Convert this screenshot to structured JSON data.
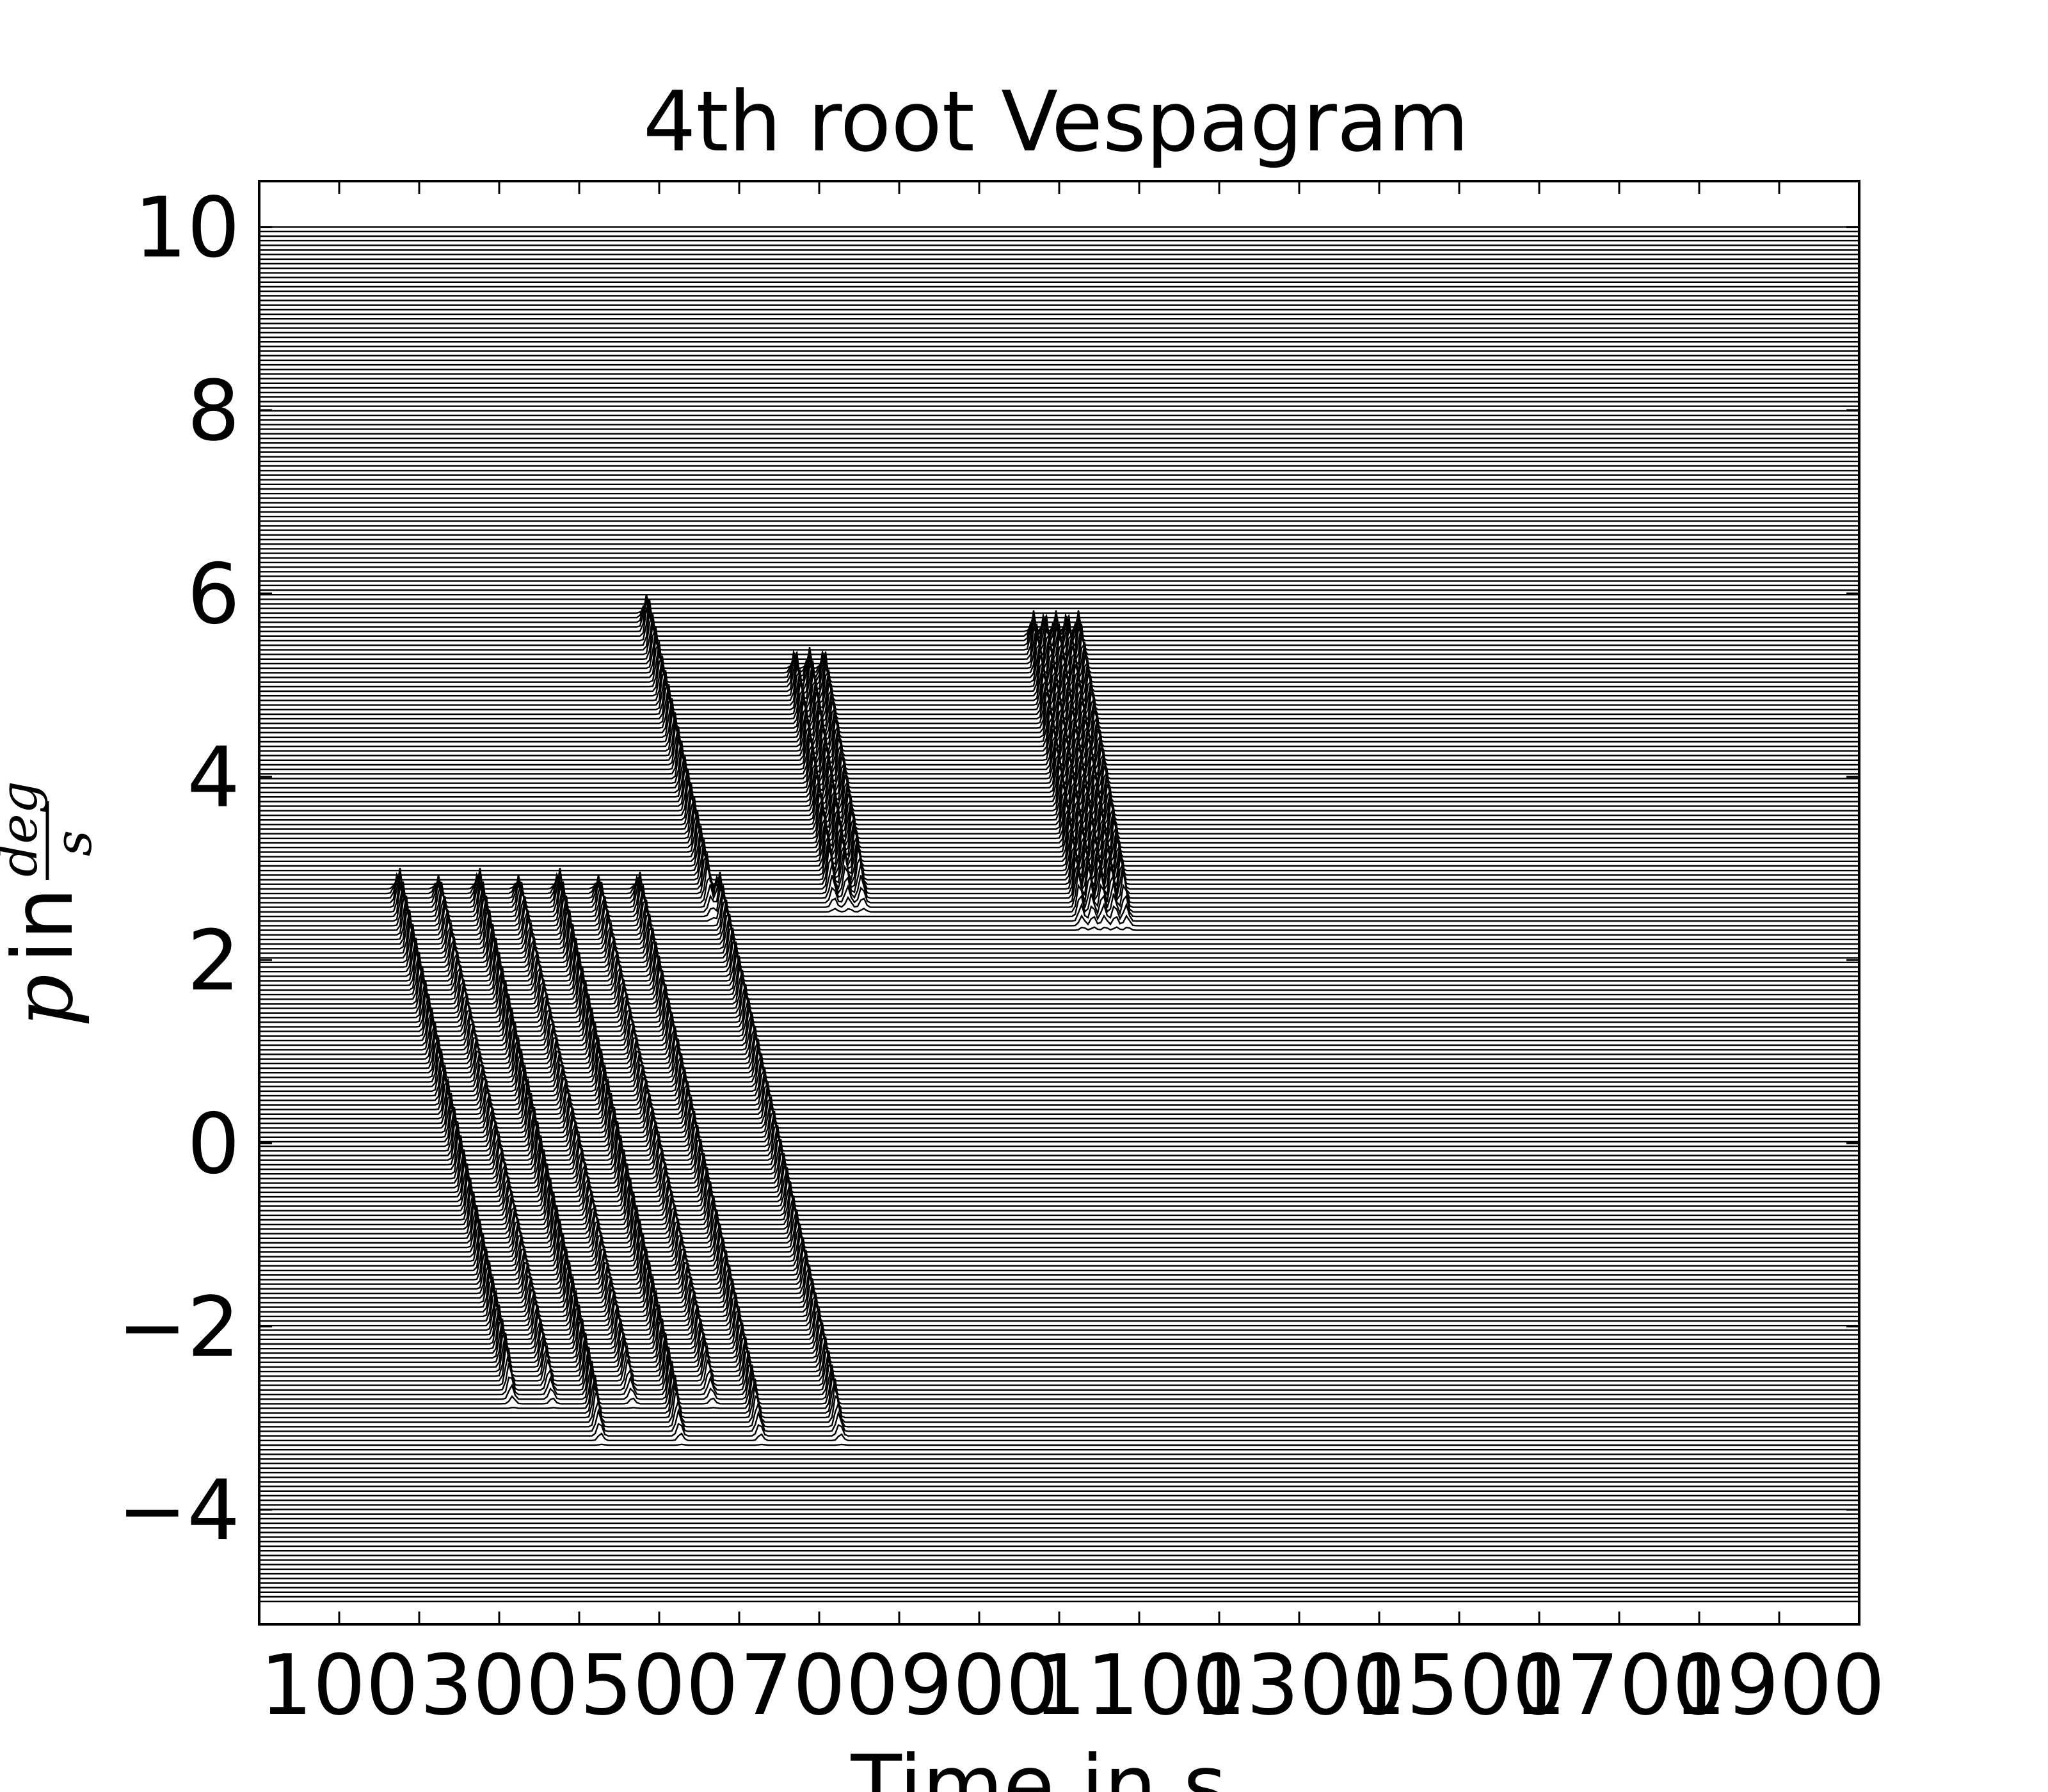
{
  "chart_data": {
    "type": "line",
    "title": "4th root Vespagram",
    "xlabel": "Time in s",
    "ylabel_parts": [
      "p",
      "in",
      "deg",
      "s"
    ],
    "xlim": [
      0,
      2000
    ],
    "ylim": [
      -5.25,
      10.5
    ],
    "trace_y_range": [
      -5,
      10
    ],
    "trace_count": 300,
    "x_ticks": [
      100,
      200,
      300,
      400,
      500,
      600,
      700,
      800,
      900,
      1000,
      1100,
      1200,
      1300,
      1400,
      1500,
      1600,
      1700,
      1800,
      1900
    ],
    "x_tick_labels": [
      "100",
      "",
      "300",
      "",
      "500",
      "",
      "700",
      "",
      "900",
      "",
      "1100",
      "",
      "1300",
      "",
      "1500",
      "",
      "1700",
      "",
      "1900"
    ],
    "y_ticks": [
      -4,
      -2,
      0,
      2,
      4,
      6,
      8,
      10
    ],
    "y_tick_labels": [
      "−4",
      "−2",
      "0",
      "2",
      "4",
      "6",
      "8",
      "10"
    ],
    "grid": false,
    "arrivals": [
      {
        "t0": 175,
        "p0": 2.6,
        "slope": -26,
        "p_min": -2.6,
        "p_max": 2.6,
        "amp": 1.0
      },
      {
        "t0": 225,
        "p0": 2.6,
        "slope": -26,
        "p_min": -2.6,
        "p_max": 2.6,
        "amp": 0.8
      },
      {
        "t0": 275,
        "p0": 2.6,
        "slope": -26,
        "p_min": -3.0,
        "p_max": 2.6,
        "amp": 1.0
      },
      {
        "t0": 325,
        "p0": 2.6,
        "slope": -26,
        "p_min": -2.6,
        "p_max": 2.6,
        "amp": 0.8
      },
      {
        "t0": 375,
        "p0": 2.6,
        "slope": -26,
        "p_min": -3.0,
        "p_max": 2.6,
        "amp": 1.0
      },
      {
        "t0": 425,
        "p0": 2.6,
        "slope": -26,
        "p_min": -2.6,
        "p_max": 2.6,
        "amp": 0.8
      },
      {
        "t0": 475,
        "p0": 2.6,
        "slope": -26,
        "p_min": -3.0,
        "p_max": 2.6,
        "amp": 0.9
      },
      {
        "t0": 575,
        "p0": 2.6,
        "slope": -26,
        "p_min": -3.0,
        "p_max": 2.6,
        "amp": 0.9
      },
      {
        "t0": 485,
        "p0": 5.6,
        "slope": -26,
        "p_min": 2.7,
        "p_max": 5.6,
        "amp": 1.0
      },
      {
        "t0": 670,
        "p0": 5.0,
        "slope": -20,
        "p_min": 2.8,
        "p_max": 5.0,
        "amp": 1.0
      },
      {
        "t0": 688,
        "p0": 5.0,
        "slope": -20,
        "p_min": 2.8,
        "p_max": 5.0,
        "amp": 1.0
      },
      {
        "t0": 706,
        "p0": 5.0,
        "slope": -20,
        "p_min": 2.8,
        "p_max": 5.0,
        "amp": 1.0
      },
      {
        "t0": 968,
        "p0": 5.4,
        "slope": -20,
        "p_min": 2.6,
        "p_max": 5.4,
        "amp": 1.0
      },
      {
        "t0": 982,
        "p0": 5.4,
        "slope": -20,
        "p_min": 2.6,
        "p_max": 5.4,
        "amp": 1.0
      },
      {
        "t0": 996,
        "p0": 5.4,
        "slope": -20,
        "p_min": 2.6,
        "p_max": 5.4,
        "amp": 1.0
      },
      {
        "t0": 1010,
        "p0": 5.4,
        "slope": -20,
        "p_min": 2.6,
        "p_max": 5.4,
        "amp": 1.0
      },
      {
        "t0": 1024,
        "p0": 5.4,
        "slope": -20,
        "p_min": 2.6,
        "p_max": 5.4,
        "amp": 1.0
      }
    ],
    "line_color": "#000000",
    "background_color": "#ffffff"
  }
}
